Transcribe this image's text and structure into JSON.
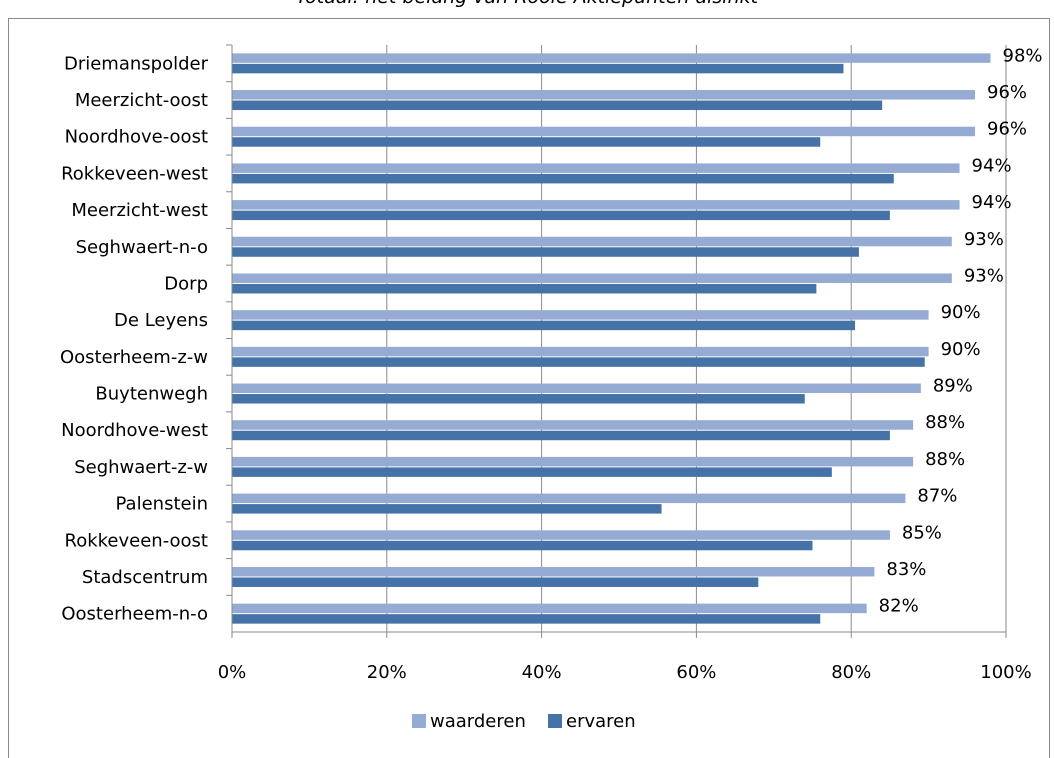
{
  "chart_data": {
    "type": "bar",
    "orientation": "horizontal",
    "title": "Totaal: het belang van Rooie Aktiepunten alsinkt",
    "categories": [
      "Driemanspolder",
      "Meerzicht-oost",
      "Noordhove-oost",
      "Rokkeveen-west",
      "Meerzicht-west",
      "Seghwaert-n-o",
      "Dorp",
      "De Leyens",
      "Oosterheem-z-w",
      "Buytenwegh",
      "Noordhove-west",
      "Seghwaert-z-w",
      "Palenstein",
      "Rokkeveen-oost",
      "Stadscentrum",
      "Oosterheem-n-o"
    ],
    "series": [
      {
        "name": "waarderen",
        "color": "#95abd3",
        "values": [
          98,
          96,
          96,
          94,
          94,
          93,
          93,
          90,
          90,
          89,
          88,
          88,
          87,
          85,
          83,
          82
        ],
        "labels": [
          "98%",
          "96%",
          "96%",
          "94%",
          "94%",
          "93%",
          "93%",
          "90%",
          "90%",
          "89%",
          "88%",
          "88%",
          "87%",
          "85%",
          "83%",
          "82%"
        ]
      },
      {
        "name": "ervaren",
        "color": "#4573a7",
        "values": [
          79,
          84,
          76,
          85.5,
          85,
          81,
          75.5,
          80.5,
          89.5,
          74,
          85,
          77.5,
          55.5,
          75,
          68,
          76
        ]
      }
    ],
    "xlim": [
      0,
      100
    ],
    "xticks": [
      "0%",
      "20%",
      "40%",
      "60%",
      "80%",
      "100%"
    ],
    "grid": true,
    "legend_position": "bottom"
  }
}
